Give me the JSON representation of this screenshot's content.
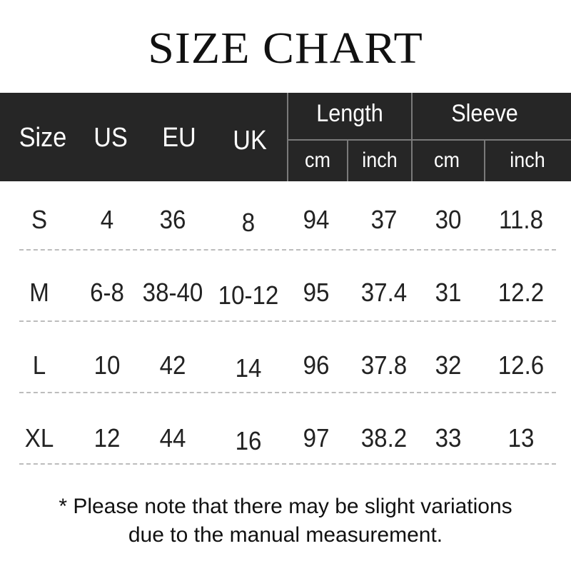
{
  "title": "SIZE CHART",
  "header": {
    "size": "Size",
    "us": "US",
    "eu": "EU",
    "uk": "UK",
    "length": "Length",
    "sleeve": "Sleeve",
    "length_cm": "cm",
    "length_inch": "inch",
    "sleeve_cm": "cm",
    "sleeve_inch": "inch"
  },
  "rows": [
    [
      "S",
      "4",
      "36",
      "8",
      "94",
      "37",
      "30",
      "11.8"
    ],
    [
      "M",
      "6-8",
      "38-40",
      "10-12",
      "95",
      "37.4",
      "31",
      "12.2"
    ],
    [
      "L",
      "10",
      "42",
      "14",
      "96",
      "37.8",
      "32",
      "12.6"
    ],
    [
      "XL",
      "12",
      "44",
      "16",
      "97",
      "38.2",
      "33",
      "13"
    ]
  ],
  "note": {
    "line1": "* Please note that there may be slight variations",
    "line2": "due to the manual measurement."
  }
}
